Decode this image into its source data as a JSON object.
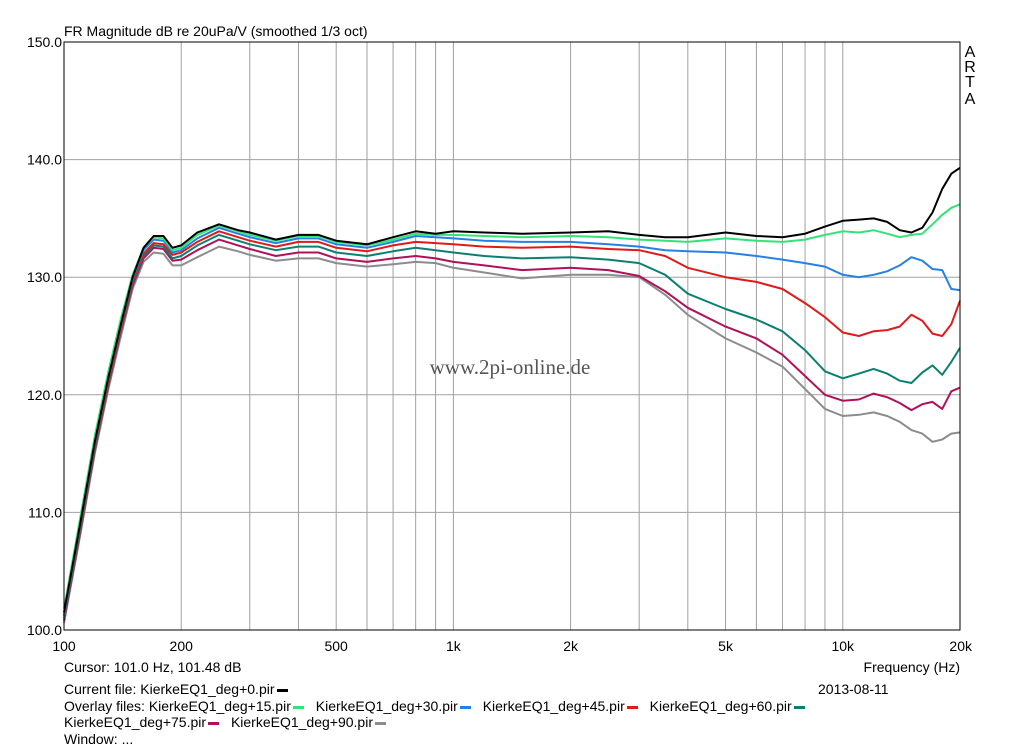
{
  "chart_data": {
    "type": "line",
    "title": "FR Magnitude dB re 20uPa/V (smoothed 1/3 oct)",
    "xlabel": "Frequency (Hz)",
    "ylabel": "",
    "xscale": "log",
    "xlim": [
      100,
      20000
    ],
    "ylim": [
      100,
      150
    ],
    "yticks": [
      "150.0",
      "140.0",
      "130.0",
      "120.0",
      "110.0",
      "100.0"
    ],
    "ytick_values": [
      150,
      140,
      130,
      120,
      110,
      100
    ],
    "xticks": [
      "100",
      "200",
      "500",
      "1k",
      "2k",
      "5k",
      "10k",
      "20k"
    ],
    "xtick_values": [
      100,
      200,
      500,
      1000,
      2000,
      5000,
      10000,
      20000
    ],
    "series": [
      {
        "name": "KierkeEQ1_deg+0.pir",
        "color": "#000000",
        "x": [
          100,
          110,
          120,
          130,
          140,
          150,
          160,
          170,
          180,
          190,
          200,
          220,
          250,
          280,
          300,
          350,
          400,
          450,
          500,
          600,
          700,
          800,
          900,
          1000,
          1200,
          1500,
          2000,
          2500,
          3000,
          3500,
          4000,
          5000,
          6000,
          7000,
          8000,
          9000,
          10000,
          11000,
          12000,
          13000,
          14000,
          15000,
          16000,
          17000,
          18000,
          19000,
          20000
        ],
        "y": [
          101.5,
          109,
          116,
          121.5,
          126,
          130,
          132.5,
          133.5,
          133.5,
          132.5,
          132.7,
          133.8,
          134.5,
          134,
          133.8,
          133.2,
          133.6,
          133.6,
          133.1,
          132.8,
          133.4,
          133.9,
          133.7,
          133.9,
          133.8,
          133.7,
          133.8,
          133.9,
          133.6,
          133.4,
          133.4,
          133.8,
          133.5,
          133.4,
          133.7,
          134.3,
          134.8,
          134.9,
          135.0,
          134.7,
          134.0,
          133.8,
          134.2,
          135.5,
          137.5,
          138.8,
          139.3
        ]
      },
      {
        "name": "KierkeEQ1_deg+15.pir",
        "color": "#33e37a",
        "x": [
          100,
          110,
          120,
          130,
          140,
          150,
          160,
          170,
          180,
          190,
          200,
          220,
          250,
          280,
          300,
          350,
          400,
          450,
          500,
          600,
          700,
          800,
          900,
          1000,
          1200,
          1500,
          2000,
          2500,
          3000,
          3500,
          4000,
          5000,
          6000,
          7000,
          8000,
          9000,
          10000,
          11000,
          12000,
          13000,
          14000,
          15000,
          16000,
          17000,
          18000,
          19000,
          20000
        ],
        "y": [
          101.8,
          109.5,
          116.5,
          122,
          126.5,
          130.2,
          132.5,
          133.4,
          133.3,
          132.3,
          132.5,
          133.6,
          134.4,
          133.9,
          133.6,
          133.1,
          133.5,
          133.5,
          133.0,
          132.7,
          133.2,
          133.7,
          133.6,
          133.6,
          133.5,
          133.4,
          133.5,
          133.4,
          133.2,
          133.1,
          133.0,
          133.3,
          133.1,
          133.0,
          133.2,
          133.6,
          133.9,
          133.8,
          134.0,
          133.7,
          133.4,
          133.6,
          133.7,
          134.5,
          135.3,
          135.9,
          136.2
        ]
      },
      {
        "name": "KierkeEQ1_deg+30.pir",
        "color": "#2581e3",
        "x": [
          100,
          110,
          120,
          130,
          140,
          150,
          160,
          170,
          180,
          190,
          200,
          220,
          250,
          280,
          300,
          350,
          400,
          450,
          500,
          600,
          700,
          800,
          900,
          1000,
          1200,
          1500,
          2000,
          2500,
          3000,
          3500,
          4000,
          5000,
          6000,
          7000,
          8000,
          9000,
          10000,
          11000,
          12000,
          13000,
          14000,
          15000,
          16000,
          17000,
          18000,
          19000,
          20000
        ],
        "y": [
          101.3,
          109,
          116,
          121.5,
          126,
          129.9,
          132.3,
          133.2,
          133.1,
          132.1,
          132.3,
          133.3,
          134.2,
          133.7,
          133.4,
          132.9,
          133.3,
          133.3,
          132.8,
          132.5,
          133.0,
          133.5,
          133.4,
          133.3,
          133.1,
          133.0,
          133.0,
          132.8,
          132.6,
          132.3,
          132.2,
          132.1,
          131.8,
          131.5,
          131.2,
          130.9,
          130.2,
          130.0,
          130.2,
          130.5,
          131.0,
          131.7,
          131.4,
          130.7,
          130.6,
          129.0,
          128.9
        ]
      },
      {
        "name": "KierkeEQ1_deg+45.pir",
        "color": "#e01a1a",
        "x": [
          100,
          110,
          120,
          130,
          140,
          150,
          160,
          170,
          180,
          190,
          200,
          220,
          250,
          280,
          300,
          350,
          400,
          450,
          500,
          600,
          700,
          800,
          900,
          1000,
          1200,
          1500,
          2000,
          2500,
          3000,
          3500,
          4000,
          5000,
          6000,
          7000,
          8000,
          9000,
          10000,
          11000,
          12000,
          13000,
          14000,
          15000,
          16000,
          17000,
          18000,
          19000,
          20000
        ],
        "y": [
          101.2,
          108.8,
          115.8,
          121.2,
          125.8,
          129.7,
          132.0,
          132.9,
          132.8,
          131.9,
          132.1,
          133.0,
          133.9,
          133.4,
          133.1,
          132.6,
          133.0,
          133.0,
          132.5,
          132.2,
          132.7,
          133.0,
          132.9,
          132.8,
          132.6,
          132.5,
          132.6,
          132.4,
          132.3,
          131.8,
          130.8,
          130.0,
          129.6,
          129.0,
          127.8,
          126.6,
          125.3,
          125.0,
          125.4,
          125.5,
          125.8,
          126.8,
          126.3,
          125.2,
          125.0,
          126.0,
          128.0
        ]
      },
      {
        "name": "KierkeEQ1_deg+60.pir",
        "color": "#0c8070",
        "x": [
          100,
          110,
          120,
          130,
          140,
          150,
          160,
          170,
          180,
          190,
          200,
          220,
          250,
          280,
          300,
          350,
          400,
          450,
          500,
          600,
          700,
          800,
          900,
          1000,
          1200,
          1500,
          2000,
          2500,
          3000,
          3500,
          4000,
          5000,
          6000,
          7000,
          8000,
          9000,
          10000,
          11000,
          12000,
          13000,
          14000,
          15000,
          16000,
          17000,
          18000,
          19000,
          20000
        ],
        "y": [
          101.0,
          108.5,
          115.5,
          121.0,
          125.6,
          129.5,
          131.8,
          132.7,
          132.6,
          131.6,
          131.8,
          132.7,
          133.6,
          133.1,
          132.8,
          132.3,
          132.6,
          132.6,
          132.1,
          131.8,
          132.2,
          132.5,
          132.3,
          132.1,
          131.8,
          131.6,
          131.7,
          131.5,
          131.2,
          130.2,
          128.6,
          127.3,
          126.4,
          125.4,
          123.8,
          122.0,
          121.4,
          121.8,
          122.2,
          121.8,
          121.2,
          121.0,
          121.9,
          122.5,
          121.7,
          122.8,
          124.0
        ]
      },
      {
        "name": "KierkeEQ1_deg+75.pir",
        "color": "#b0105a",
        "x": [
          100,
          110,
          120,
          130,
          140,
          150,
          160,
          170,
          180,
          190,
          200,
          220,
          250,
          280,
          300,
          350,
          400,
          450,
          500,
          600,
          700,
          800,
          900,
          1000,
          1200,
          1500,
          2000,
          2500,
          3000,
          3500,
          4000,
          5000,
          6000,
          7000,
          8000,
          9000,
          10000,
          11000,
          12000,
          13000,
          14000,
          15000,
          16000,
          17000,
          18000,
          19000,
          20000
        ],
        "y": [
          100.8,
          108.3,
          115.3,
          120.8,
          125.4,
          129.3,
          131.6,
          132.5,
          132.4,
          131.4,
          131.5,
          132.3,
          133.2,
          132.7,
          132.4,
          131.8,
          132.1,
          132.1,
          131.6,
          131.3,
          131.6,
          131.8,
          131.6,
          131.3,
          131.0,
          130.6,
          130.8,
          130.6,
          130.1,
          128.8,
          127.4,
          125.8,
          124.8,
          123.4,
          121.6,
          120.0,
          119.5,
          119.6,
          120.1,
          119.8,
          119.3,
          118.7,
          119.2,
          119.4,
          118.8,
          120.3,
          120.6
        ]
      },
      {
        "name": "KierkeEQ1_deg+90.pir",
        "color": "#8c8c8c",
        "x": [
          100,
          110,
          120,
          130,
          140,
          150,
          160,
          170,
          180,
          190,
          200,
          220,
          250,
          280,
          300,
          350,
          400,
          450,
          500,
          600,
          700,
          800,
          900,
          1000,
          1200,
          1500,
          2000,
          2500,
          3000,
          3500,
          4000,
          5000,
          6000,
          7000,
          8000,
          9000,
          10000,
          11000,
          12000,
          13000,
          14000,
          15000,
          16000,
          17000,
          18000,
          19000,
          20000
        ],
        "y": [
          100.6,
          108.0,
          115.0,
          120.5,
          125.0,
          129.0,
          131.3,
          132.1,
          132.0,
          131.0,
          131.0,
          131.7,
          132.6,
          132.2,
          131.9,
          131.4,
          131.6,
          131.6,
          131.2,
          130.9,
          131.1,
          131.3,
          131.2,
          130.8,
          130.4,
          129.9,
          130.2,
          130.2,
          130.0,
          128.5,
          126.8,
          124.8,
          123.6,
          122.4,
          120.5,
          118.8,
          118.2,
          118.3,
          118.5,
          118.2,
          117.7,
          117.0,
          116.7,
          116.0,
          116.2,
          116.7,
          116.8
        ]
      }
    ]
  },
  "watermark": "www.2pi-online.de",
  "brand": [
    "A",
    "R",
    "T",
    "A"
  ],
  "info": {
    "cursor": "Cursor: 101.0 Hz, 101.48 dB",
    "current_file_label": "Current file: KierkeEQ1_deg+0.pir",
    "date": "2013-08-11",
    "overlay_prefix": "Overlay files:",
    "overlay_files": [
      {
        "name": "KierkeEQ1_deg+15.pir",
        "color": "#33e37a"
      },
      {
        "name": "KierkeEQ1_deg+30.pir",
        "color": "#2581e3"
      },
      {
        "name": "KierkeEQ1_deg+45.pir",
        "color": "#e01a1a"
      },
      {
        "name": "KierkeEQ1_deg+60.pir",
        "color": "#0c8070"
      },
      {
        "name": "KierkeEQ1_deg+75.pir",
        "color": "#b0105a"
      },
      {
        "name": "KierkeEQ1_deg+90.pir",
        "color": "#8c8c8c"
      }
    ],
    "current_file_color": "#000000",
    "footer_partial": "Window: ...",
    "axis_color": "#000000",
    "grid_color": "#a0a0a0"
  }
}
